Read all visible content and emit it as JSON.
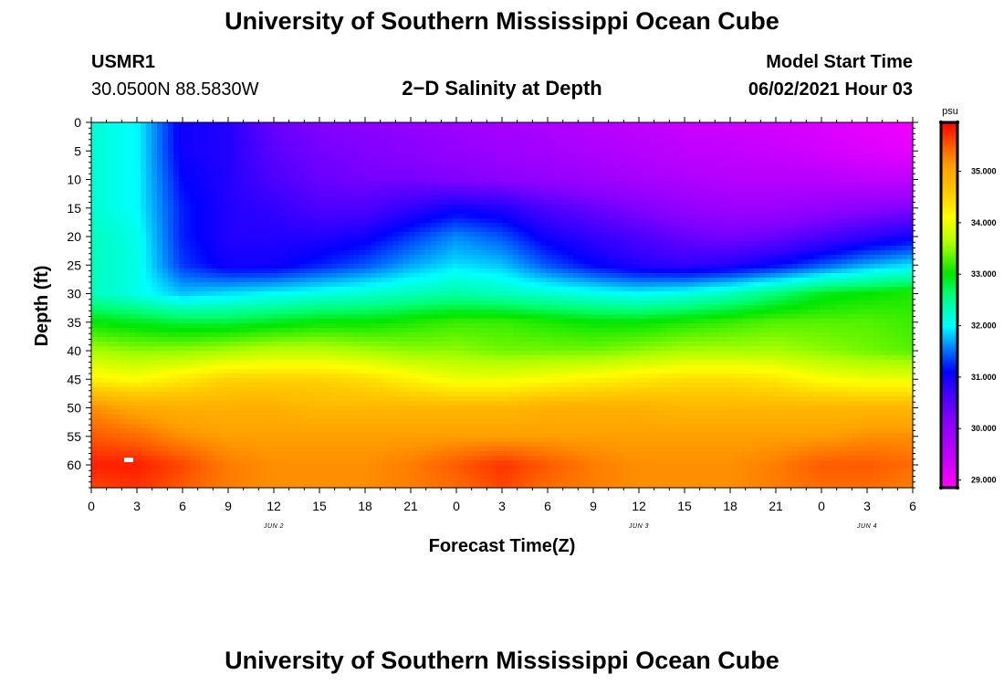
{
  "header": {
    "title": "University of Southern Mississippi Ocean Cube",
    "station_id": "USMR1",
    "coords": "30.0500N  88.5830W",
    "subtitle": "2−D Salinity at Depth",
    "model_label": "Model Start Time",
    "model_time": "06/02/2021 Hour 03"
  },
  "footer": {
    "title": "University of Southern Mississippi Ocean Cube"
  },
  "chart_data": {
    "type": "heatmap",
    "title": "2−D Salinity at Depth",
    "xlabel": "Forecast Time(Z)",
    "ylabel": "Depth (ft)",
    "x_ticks": [
      "0",
      "3",
      "6",
      "9",
      "12",
      "15",
      "18",
      "21",
      "0",
      "3",
      "6",
      "9",
      "12",
      "15",
      "18",
      "21",
      "0",
      "3",
      "6"
    ],
    "x_range_hours": [
      0,
      54
    ],
    "day_labels": [
      {
        "label": "JUN 2",
        "hour": 12
      },
      {
        "label": "JUN 3",
        "hour": 36
      },
      {
        "label": "JUN 4",
        "hour": 51
      }
    ],
    "y_ticks": [
      "0",
      "5",
      "10",
      "15",
      "20",
      "25",
      "30",
      "35",
      "40",
      "45",
      "50",
      "55",
      "60"
    ],
    "ylim": [
      0,
      64
    ],
    "colorbar": {
      "unit": "psu",
      "range": [
        28.85,
        35.95
      ],
      "ticks": [
        "35.000",
        "34.000",
        "33.000",
        "32.000",
        "31.000",
        "30.000",
        "29.000"
      ]
    },
    "time_hours": [
      0,
      3,
      6,
      9,
      12,
      15,
      18,
      21,
      24,
      27,
      30,
      33,
      36,
      39,
      42,
      45,
      48,
      51,
      54
    ],
    "depths_ft": [
      0,
      5,
      10,
      15,
      20,
      25,
      30,
      35,
      40,
      45,
      50,
      55,
      60,
      64
    ],
    "salinity_psu": [
      [
        32.2,
        32.0,
        31.0,
        30.9,
        30.4,
        30.2,
        30.1,
        30.0,
        29.9,
        29.8,
        29.7,
        29.6,
        29.5,
        29.4,
        29.35,
        29.3,
        29.2,
        29.1,
        29.0
      ],
      [
        32.2,
        32.0,
        31.0,
        30.9,
        30.5,
        30.3,
        30.2,
        30.1,
        30.0,
        29.9,
        29.8,
        29.7,
        29.6,
        29.5,
        29.45,
        29.4,
        29.3,
        29.2,
        29.1
      ],
      [
        32.2,
        32.0,
        31.1,
        30.9,
        30.6,
        30.4,
        30.3,
        30.3,
        30.2,
        30.1,
        30.0,
        29.9,
        29.8,
        29.7,
        29.6,
        29.6,
        29.6,
        29.5,
        29.5
      ],
      [
        32.2,
        32.0,
        31.2,
        30.9,
        30.8,
        30.6,
        30.6,
        30.8,
        31.0,
        30.9,
        30.6,
        30.4,
        30.2,
        30.0,
        29.9,
        29.9,
        30.0,
        30.1,
        30.2
      ],
      [
        32.3,
        32.1,
        31.2,
        30.9,
        30.9,
        30.9,
        31.0,
        31.3,
        31.6,
        31.4,
        31.0,
        30.8,
        30.6,
        30.4,
        30.3,
        30.4,
        30.6,
        30.8,
        31.0
      ],
      [
        32.3,
        32.1,
        31.3,
        31.0,
        31.0,
        31.2,
        31.4,
        31.7,
        31.9,
        31.8,
        31.4,
        31.1,
        30.9,
        30.8,
        30.9,
        31.1,
        31.4,
        31.7,
        31.9
      ],
      [
        32.3,
        32.1,
        31.8,
        31.9,
        32.0,
        32.1,
        32.2,
        32.3,
        32.4,
        32.3,
        32.2,
        32.1,
        32.0,
        32.1,
        32.3,
        32.6,
        32.9,
        33.0,
        33.1
      ],
      [
        33.0,
        32.9,
        32.8,
        32.8,
        32.9,
        33.0,
        33.0,
        33.1,
        33.2,
        33.2,
        33.1,
        33.0,
        33.0,
        33.1,
        33.2,
        33.3,
        33.3,
        33.3,
        33.2
      ],
      [
        33.6,
        33.5,
        33.5,
        33.6,
        33.7,
        33.7,
        33.6,
        33.5,
        33.5,
        33.4,
        33.4,
        33.4,
        33.5,
        33.6,
        33.6,
        33.6,
        33.5,
        33.4,
        33.3
      ],
      [
        34.2,
        34.1,
        34.3,
        34.5,
        34.5,
        34.5,
        34.4,
        34.2,
        34.0,
        34.0,
        34.1,
        34.2,
        34.3,
        34.4,
        34.4,
        34.3,
        34.1,
        34.0,
        34.0
      ],
      [
        35.2,
        35.0,
        34.9,
        34.9,
        34.9,
        34.8,
        34.8,
        34.8,
        34.8,
        34.8,
        34.9,
        34.9,
        34.9,
        34.8,
        34.8,
        34.8,
        34.8,
        34.8,
        34.8
      ],
      [
        35.5,
        35.4,
        35.2,
        35.1,
        35.1,
        35.1,
        35.1,
        35.1,
        35.1,
        35.1,
        35.1,
        35.1,
        35.1,
        35.1,
        35.1,
        35.1,
        35.1,
        35.2,
        35.2
      ],
      [
        35.8,
        35.8,
        35.6,
        35.3,
        35.2,
        35.2,
        35.2,
        35.3,
        35.5,
        35.7,
        35.5,
        35.3,
        35.2,
        35.2,
        35.2,
        35.3,
        35.5,
        35.5,
        35.4
      ],
      [
        35.6,
        35.7,
        35.5,
        35.3,
        35.2,
        35.2,
        35.2,
        35.3,
        35.4,
        35.6,
        35.4,
        35.3,
        35.2,
        35.2,
        35.2,
        35.3,
        35.4,
        35.4,
        35.3
      ]
    ]
  }
}
